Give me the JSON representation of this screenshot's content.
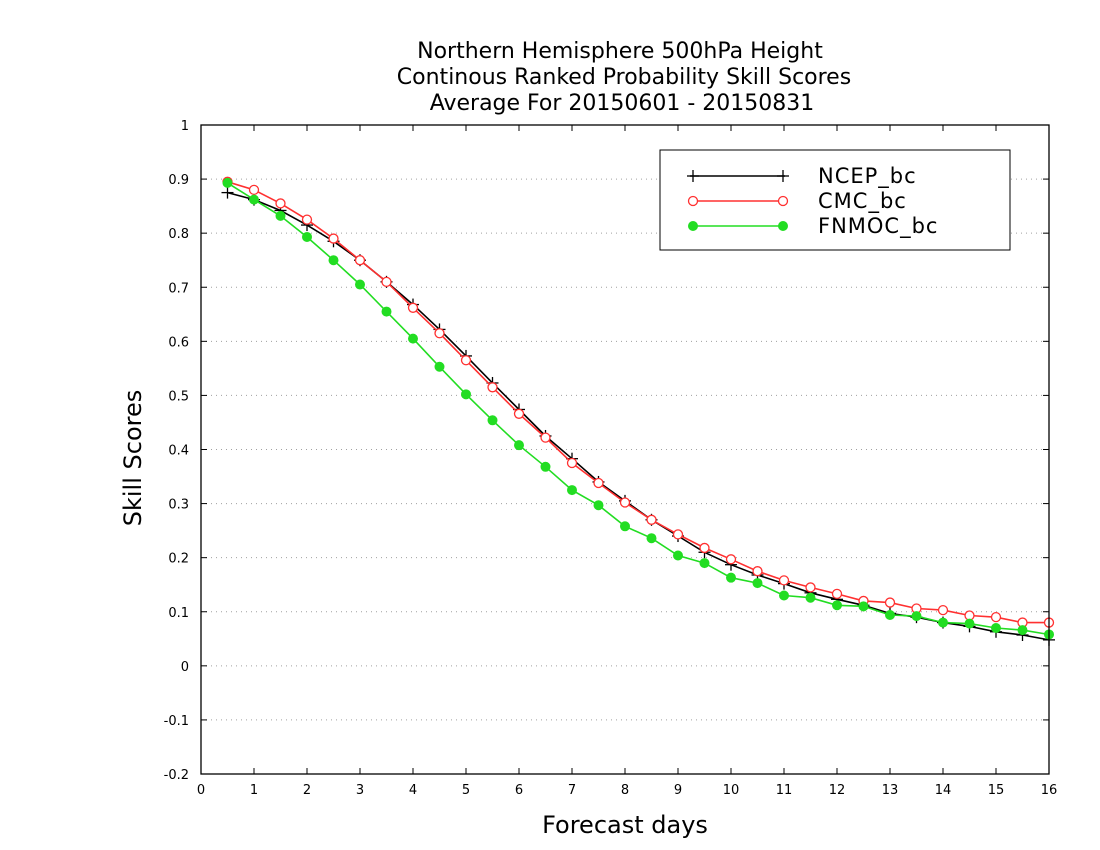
{
  "chart_data": {
    "type": "line",
    "title_lines": [
      "Northern Hemisphere 500hPa Height",
      "Continous Ranked Probability Skill Scores",
      "Average For 20150601 - 20150831"
    ],
    "xlabel": "Forecast days",
    "ylabel": "Skill Scores",
    "xlim": [
      0,
      16
    ],
    "ylim": [
      -0.2,
      1
    ],
    "x_ticks": [
      0,
      1,
      2,
      3,
      4,
      5,
      6,
      7,
      8,
      9,
      10,
      11,
      12,
      13,
      14,
      15,
      16
    ],
    "y_ticks": [
      -0.2,
      -0.1,
      0,
      0.1,
      0.2,
      0.3,
      0.4,
      0.5,
      0.6,
      0.7,
      0.8,
      0.9,
      1
    ],
    "y_tick_labels": [
      "-0.2",
      "-0.1",
      "0",
      "0.1",
      "0.2",
      "0.3",
      "0.4",
      "0.5",
      "0.6",
      "0.7",
      "0.8",
      "0.9",
      "1"
    ],
    "grid": "horizontal-dotted",
    "legend_position": "top-right",
    "x": [
      0.5,
      1,
      1.5,
      2,
      2.5,
      3,
      3.5,
      4,
      4.5,
      5,
      5.5,
      6,
      6.5,
      7,
      7.5,
      8,
      8.5,
      9,
      9.5,
      10,
      10.5,
      11,
      11.5,
      12,
      12.5,
      13,
      13.5,
      14,
      14.5,
      15,
      15.5,
      16
    ],
    "series": [
      {
        "name": "NCEP_bc",
        "color": "#000000",
        "marker": "plus",
        "values": [
          0.875,
          0.862,
          0.842,
          0.815,
          0.785,
          0.75,
          0.71,
          0.668,
          0.622,
          0.573,
          0.523,
          0.474,
          0.425,
          0.383,
          0.34,
          0.305,
          0.27,
          0.24,
          0.21,
          0.187,
          0.168,
          0.152,
          0.135,
          0.123,
          0.112,
          0.097,
          0.09,
          0.08,
          0.073,
          0.063,
          0.057,
          0.048
        ]
      },
      {
        "name": "CMC_bc",
        "color": "#ff3030",
        "marker": "open-circle",
        "values": [
          0.895,
          0.88,
          0.855,
          0.825,
          0.79,
          0.75,
          0.71,
          0.662,
          0.615,
          0.565,
          0.515,
          0.466,
          0.422,
          0.375,
          0.338,
          0.302,
          0.27,
          0.243,
          0.218,
          0.197,
          0.175,
          0.158,
          0.145,
          0.133,
          0.12,
          0.117,
          0.106,
          0.103,
          0.093,
          0.09,
          0.08,
          0.08
        ]
      },
      {
        "name": "FNMOC_bc",
        "color": "#22dd22",
        "marker": "filled-circle",
        "values": [
          0.893,
          0.862,
          0.832,
          0.793,
          0.75,
          0.705,
          0.655,
          0.605,
          0.553,
          0.502,
          0.454,
          0.408,
          0.368,
          0.325,
          0.297,
          0.258,
          0.236,
          0.204,
          0.19,
          0.163,
          0.153,
          0.13,
          0.126,
          0.112,
          0.11,
          0.094,
          0.092,
          0.08,
          0.078,
          0.07,
          0.066,
          0.058
        ]
      }
    ]
  }
}
